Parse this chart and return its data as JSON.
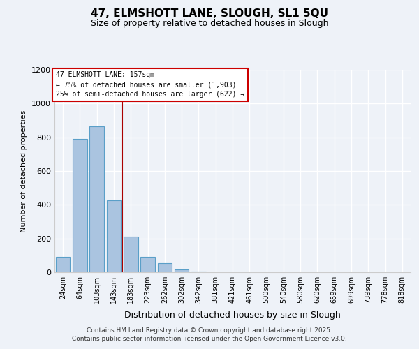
{
  "title": "47, ELMSHOTT LANE, SLOUGH, SL1 5QU",
  "subtitle": "Size of property relative to detached houses in Slough",
  "xlabel": "Distribution of detached houses by size in Slough",
  "ylabel": "Number of detached properties",
  "bin_labels": [
    "24sqm",
    "64sqm",
    "103sqm",
    "143sqm",
    "183sqm",
    "223sqm",
    "262sqm",
    "302sqm",
    "342sqm",
    "381sqm",
    "421sqm",
    "461sqm",
    "500sqm",
    "540sqm",
    "580sqm",
    "620sqm",
    "659sqm",
    "699sqm",
    "739sqm",
    "778sqm",
    "818sqm"
  ],
  "bar_values": [
    90,
    790,
    865,
    425,
    210,
    90,
    52,
    18,
    5,
    0,
    0,
    2,
    0,
    0,
    0,
    0,
    0,
    0,
    0,
    0,
    0
  ],
  "bar_color": "#aac4e0",
  "bar_edge_color": "#5a9fc8",
  "property_line_color": "#aa0000",
  "property_line_x": 3.5,
  "annotation_title": "47 ELMSHOTT LANE: 157sqm",
  "annotation_line1": "← 75% of detached houses are smaller (1,903)",
  "annotation_line2": "25% of semi-detached houses are larger (622) →",
  "annotation_box_color": "#cc0000",
  "ylim": [
    0,
    1200
  ],
  "yticks": [
    0,
    200,
    400,
    600,
    800,
    1000,
    1200
  ],
  "background_color": "#eef2f8",
  "grid_color": "#ffffff",
  "footer1": "Contains HM Land Registry data © Crown copyright and database right 2025.",
  "footer2": "Contains public sector information licensed under the Open Government Licence v3.0."
}
